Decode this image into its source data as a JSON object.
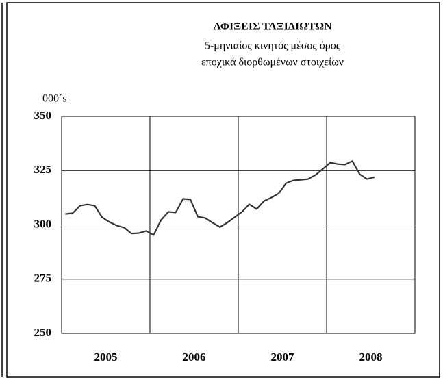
{
  "chart_data": {
    "type": "line",
    "title": "ΑΦΙΞΕΙΣ ΤΑΞΙΔΙΩΤΩΝ",
    "subtitle": [
      "5-μηνιαίος κινητός μέσος όρος",
      "εποχικά διορθωμένων στοιχείων"
    ],
    "y_unit": "000´s",
    "year_labels": [
      "2005",
      "2006",
      "2007",
      "2008"
    ],
    "values": [
      305.0,
      305.4,
      308.8,
      309.4,
      308.8,
      303.5,
      301.3,
      299.7,
      298.7,
      296.0,
      296.2,
      297.2,
      295.3,
      302.2,
      306.0,
      305.7,
      312.0,
      311.7,
      303.8,
      303.2,
      301.0,
      299.0,
      301.0,
      303.5,
      306.0,
      309.5,
      307.3,
      311.0,
      312.6,
      314.5,
      319.2,
      320.5,
      320.8,
      321.1,
      323.0,
      325.8,
      328.7,
      328.0,
      327.8,
      329.4,
      323.3,
      321.1,
      322.0
    ],
    "color": "#333333",
    "ylim": [
      250,
      350
    ],
    "yticks": [
      250,
      275,
      300,
      325,
      350
    ],
    "grid": true
  }
}
